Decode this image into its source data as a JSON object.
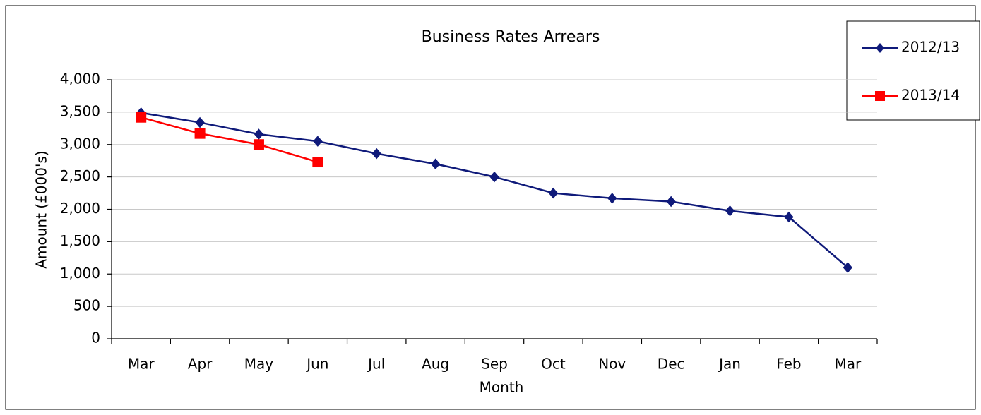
{
  "chart_data": {
    "type": "line",
    "title": "Business Rates Arrears",
    "x_label": "Month",
    "y_label": "Amount (£000's)",
    "categories": [
      "Mar",
      "Apr",
      "May",
      "Jun",
      "Jul",
      "Aug",
      "Sep",
      "Oct",
      "Nov",
      "Dec",
      "Jan",
      "Feb",
      "Mar"
    ],
    "series": [
      {
        "name": "2012/13",
        "color": "#0f1a7a",
        "marker": "diamond",
        "values": [
          3490,
          3340,
          3160,
          3050,
          2860,
          2700,
          2500,
          2250,
          2170,
          2120,
          1975,
          1880,
          1100
        ]
      },
      {
        "name": "2013/14",
        "color": "#ff0000",
        "marker": "square",
        "values": [
          3420,
          3170,
          3000,
          2730,
          null,
          null,
          null,
          null,
          null,
          null,
          null,
          null,
          null
        ]
      }
    ],
    "ylim": [
      0,
      4000
    ],
    "yticks": [
      0,
      500,
      {
        "value": 1000,
        "label": "1,000"
      },
      {
        "value": 1500,
        "label": "1,500"
      },
      {
        "value": 2000,
        "label": "2,000"
      },
      {
        "value": 2500,
        "label": "2,500"
      },
      {
        "value": 3000,
        "label": "3,000"
      },
      {
        "value": 3500,
        "label": "3,500"
      },
      {
        "value": 4000,
        "label": "4,000"
      }
    ],
    "grid": true,
    "legend": "right"
  }
}
